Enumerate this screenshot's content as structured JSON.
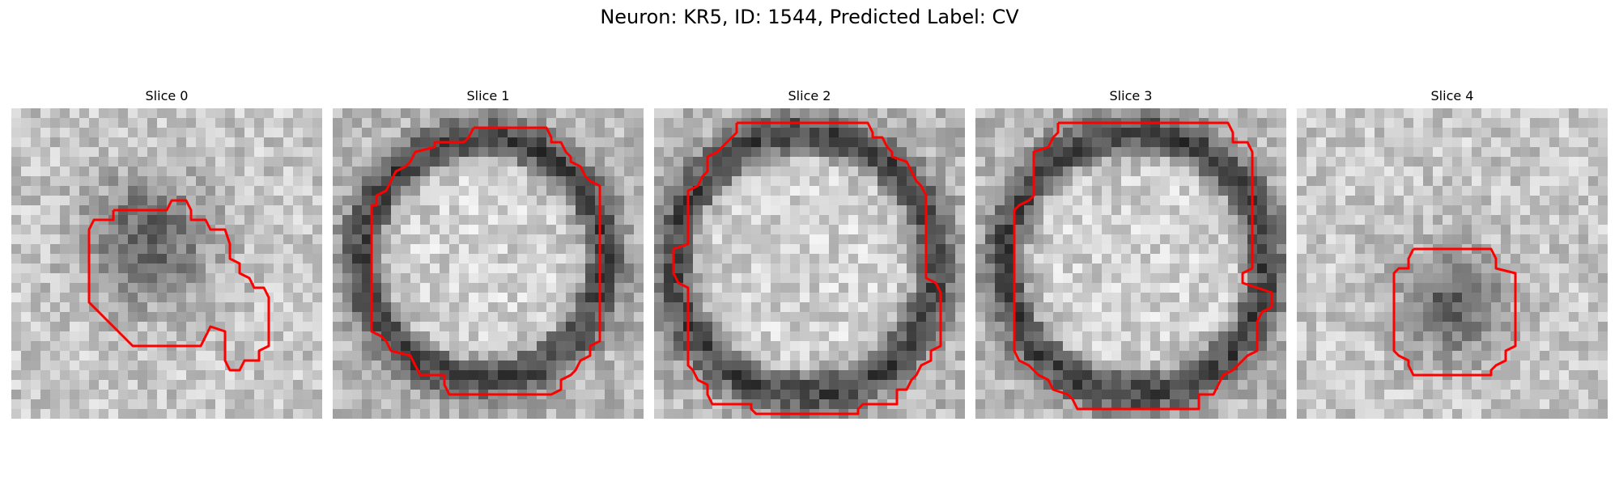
{
  "title": "Neuron: KR5, ID: 1544, Predicted Label: CV",
  "panels": [
    {
      "title": "Slice 0",
      "dark_region": "blob",
      "contour_color": "#ff0000"
    },
    {
      "title": "Slice 1",
      "dark_region": "ring",
      "contour_color": "#ff0000"
    },
    {
      "title": "Slice 2",
      "dark_region": "ring",
      "contour_color": "#ff0000"
    },
    {
      "title": "Slice 3",
      "dark_region": "ring",
      "contour_color": "#ff0000"
    },
    {
      "title": "Slice 4",
      "dark_region": "blob",
      "contour_color": "#ff0000"
    }
  ],
  "colormap": "gray",
  "contour_color": "#ff0000"
}
